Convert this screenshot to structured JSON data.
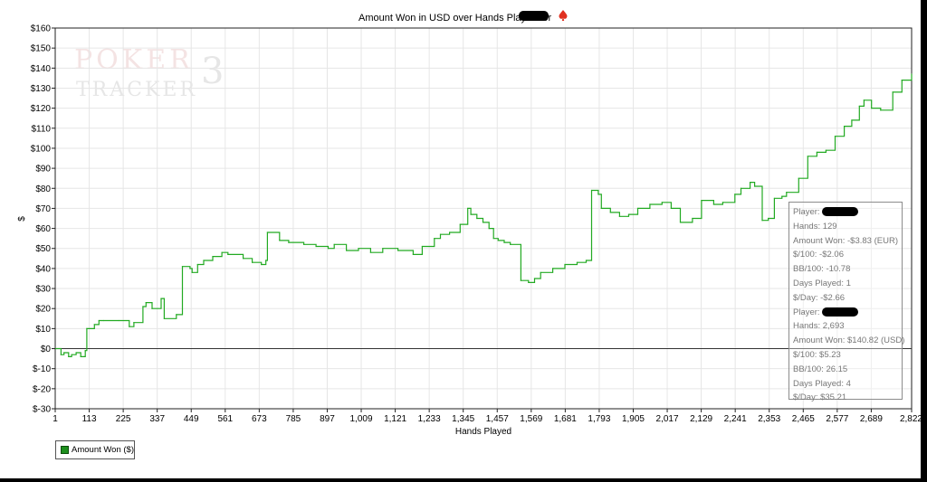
{
  "chart_data": {
    "type": "line",
    "title": "Amount Won in USD over Hands Played for",
    "xlabel": "Hands Played",
    "ylabel": "$",
    "xlim": [
      1,
      2822
    ],
    "ylim": [
      -30,
      160
    ],
    "x_ticks": [
      "1",
      "113",
      "225",
      "337",
      "449",
      "561",
      "673",
      "785",
      "897",
      "1,009",
      "1,121",
      "1,233",
      "1,345",
      "1,457",
      "1,569",
      "1,681",
      "1,793",
      "1,905",
      "2,017",
      "2,129",
      "2,241",
      "2,353",
      "2,465",
      "2,577",
      "2,689",
      "2,822"
    ],
    "y_ticks": [
      "$160",
      "$150",
      "$140",
      "$130",
      "$120",
      "$110",
      "$100",
      "$90",
      "$80",
      "$70",
      "$60",
      "$50",
      "$40",
      "$30",
      "$20",
      "$10",
      "$0",
      "$-10",
      "$-20",
      "$-30"
    ],
    "grid": true,
    "legend": "bottom-left",
    "series": [
      {
        "name": "Amount Won ($)",
        "color": "#22aa22",
        "x": [
          1,
          20,
          30,
          45,
          55,
          70,
          85,
          100,
          105,
          130,
          145,
          160,
          210,
          245,
          260,
          290,
          300,
          320,
          350,
          360,
          400,
          420,
          445,
          452,
          470,
          490,
          520,
          550,
          570,
          620,
          650,
          680,
          695,
          700,
          740,
          770,
          820,
          860,
          900,
          920,
          960,
          1000,
          1040,
          1080,
          1130,
          1180,
          1210,
          1250,
          1270,
          1300,
          1335,
          1360,
          1370,
          1390,
          1410,
          1430,
          1445,
          1460,
          1480,
          1500,
          1535,
          1560,
          1580,
          1600,
          1640,
          1680,
          1720,
          1750,
          1768,
          1790,
          1800,
          1830,
          1860,
          1890,
          1920,
          1960,
          2000,
          2030,
          2060,
          2100,
          2130,
          2170,
          2200,
          2240,
          2260,
          2290,
          2305,
          2330,
          2350,
          2370,
          2395,
          2410,
          2450,
          2480,
          2510,
          2540,
          2570,
          2600,
          2625,
          2650,
          2665,
          2690,
          2720,
          2760,
          2790,
          2822
        ],
        "values": [
          0,
          -3,
          -2,
          -4,
          -3,
          -2,
          -4,
          -1,
          10,
          12,
          14,
          14,
          14,
          11,
          13,
          21,
          23,
          20,
          25,
          15,
          17,
          41,
          40,
          38,
          42,
          44,
          46,
          48,
          47,
          45,
          43,
          42,
          44,
          58,
          54,
          53,
          52,
          51,
          50,
          52,
          49,
          50,
          48,
          50,
          49,
          47,
          51,
          55,
          57,
          58,
          62,
          70,
          67,
          65,
          63,
          60,
          55,
          54,
          53,
          52,
          34,
          33,
          35,
          38,
          40,
          42,
          43,
          44,
          79,
          77,
          70,
          68,
          66,
          67,
          70,
          72,
          73,
          70,
          63,
          65,
          74,
          72,
          73,
          77,
          80,
          83,
          81,
          64,
          65,
          75,
          76,
          78,
          85,
          96,
          98,
          99,
          106,
          111,
          114,
          121,
          124,
          120,
          119,
          128,
          134,
          137
        ]
      }
    ]
  },
  "watermark": {
    "line1": "POKER",
    "line2": "TRACKER",
    "line3": "3"
  },
  "stats": {
    "player1": {
      "player_label": "Player:",
      "hands": "Hands: 129",
      "amount_won": "Amount Won: -$3.83 (EUR)",
      "per100": "$/100: -$2.06",
      "bb100": "BB/100: -10.78",
      "days": "Days Played: 1",
      "per_day": "$/Day: -$2.66"
    },
    "player2": {
      "player_label": "Player:",
      "hands": "Hands: 2,693",
      "amount_won": "Amount Won: $140.82 (USD)",
      "per100": "$/100: $5.23",
      "bb100": "BB/100: 26.15",
      "days": "Days Played: 4",
      "per_day": "$/Day: $35.21"
    }
  },
  "legend": {
    "label": "Amount Won ($)",
    "color": "#1e8f1e"
  }
}
